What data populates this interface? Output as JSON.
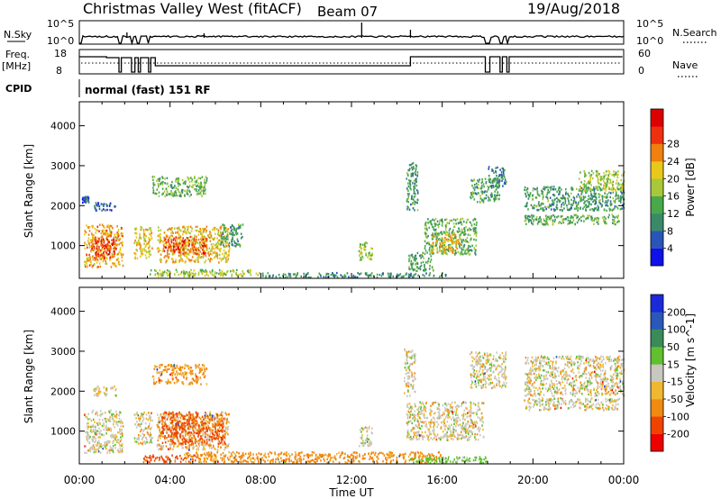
{
  "header": {
    "station": "Christmas Valley West (fitACF)",
    "beam": "Beam 07",
    "date": "19/Aug/2018"
  },
  "panels": {
    "nsky": {
      "label": "N.Sky",
      "tick_labels": [
        "10^5",
        "10^0"
      ],
      "right_label": "N.Search",
      "right_tick_labels": [
        "10^5",
        "10^0"
      ]
    },
    "freq": {
      "label_line1": "Freq.",
      "label_line2": "[MHz]",
      "tick_labels": [
        "18",
        "8"
      ],
      "right_label": "Nave",
      "right_tick_labels": [
        "60",
        "0"
      ]
    },
    "cpid": {
      "label": "CPID",
      "value": "normal (fast) 151 RF"
    }
  },
  "colors": {
    "power": [
      "#1010e8",
      "#2a55b8",
      "#3a8a6a",
      "#49a849",
      "#a8c83a",
      "#e8c81a",
      "#f08010",
      "#ee3010",
      "#dd0000"
    ],
    "velocity": [
      "#ee0000",
      "#ee4400",
      "#f08a10",
      "#f0b830",
      "#c8c8c0",
      "#60c030",
      "#3a8a5a",
      "#2a58b8",
      "#1a2ad8"
    ]
  },
  "chart_data": [
    {
      "type": "heatmap",
      "xlabel": "Time UT",
      "ylabel": "Slant Range [km]",
      "x_tick_labels": [
        "00:00",
        "04:00",
        "08:00",
        "12:00",
        "16:00",
        "20:00",
        "00:00"
      ],
      "xlim_hours": [
        0,
        24
      ],
      "ylim": [
        180,
        4600
      ],
      "y_ticks": [
        1000,
        2000,
        3000,
        4000
      ],
      "colorbar": {
        "label": "Power [dB]",
        "range": [
          0,
          36
        ],
        "ticks": [
          4,
          8,
          12,
          16,
          20,
          24,
          28
        ]
      },
      "echo_regions": [
        {
          "t0": 0.2,
          "t1": 1.9,
          "r0": 480,
          "r1": 1550,
          "value": 24
        },
        {
          "t0": 0.5,
          "t1": 1.6,
          "r0": 700,
          "r1": 1200,
          "value": 30
        },
        {
          "t0": 2.4,
          "t1": 3.2,
          "r0": 700,
          "r1": 1500,
          "value": 22
        },
        {
          "t0": 3.4,
          "t1": 6.6,
          "r0": 600,
          "r1": 1500,
          "value": 22
        },
        {
          "t0": 3.7,
          "t1": 5.6,
          "r0": 800,
          "r1": 1250,
          "value": 29
        },
        {
          "t0": 6.2,
          "t1": 7.2,
          "r0": 1000,
          "r1": 1550,
          "value": 12
        },
        {
          "t0": 3.2,
          "t1": 5.6,
          "r0": 2250,
          "r1": 2750,
          "value": 15
        },
        {
          "t0": 0.6,
          "t1": 1.6,
          "r0": 1900,
          "r1": 2100,
          "value": 7
        },
        {
          "t0": 0.1,
          "t1": 0.4,
          "r0": 2100,
          "r1": 2250,
          "value": 7
        },
        {
          "t0": 3.1,
          "t1": 8.0,
          "r0": 250,
          "r1": 420,
          "value": 18
        },
        {
          "t0": 8.0,
          "t1": 16.2,
          "r0": 220,
          "r1": 340,
          "value": 11
        },
        {
          "t0": 12.3,
          "t1": 12.9,
          "r0": 650,
          "r1": 1100,
          "value": 17
        },
        {
          "t0": 14.4,
          "t1": 14.9,
          "r0": 1900,
          "r1": 3100,
          "value": 12
        },
        {
          "t0": 14.5,
          "t1": 15.6,
          "r0": 380,
          "r1": 850,
          "value": 13
        },
        {
          "t0": 15.2,
          "t1": 17.5,
          "r0": 800,
          "r1": 1700,
          "value": 14
        },
        {
          "t0": 15.5,
          "t1": 16.8,
          "r0": 850,
          "r1": 1300,
          "value": 23
        },
        {
          "t0": 17.2,
          "t1": 18.5,
          "r0": 2100,
          "r1": 2700,
          "value": 12
        },
        {
          "t0": 18.0,
          "t1": 18.8,
          "r0": 2500,
          "r1": 3000,
          "value": 9
        },
        {
          "t0": 19.6,
          "t1": 24.0,
          "r0": 1900,
          "r1": 2500,
          "value": 12
        },
        {
          "t0": 22.0,
          "t1": 24.0,
          "r0": 2400,
          "r1": 2900,
          "value": 18
        },
        {
          "t0": 19.6,
          "t1": 23.8,
          "r0": 1550,
          "r1": 1800,
          "value": 14
        }
      ]
    },
    {
      "type": "heatmap",
      "xlabel": "Time UT",
      "ylabel": "Slant Range [km]",
      "x_tick_labels": [
        "00:00",
        "04:00",
        "08:00",
        "12:00",
        "16:00",
        "20:00",
        "00:00"
      ],
      "xlim_hours": [
        0,
        24
      ],
      "ylim": [
        180,
        4600
      ],
      "y_ticks": [
        1000,
        2000,
        3000,
        4000
      ],
      "colorbar": {
        "label": "Velocity [m s^-1]",
        "ticks": [
          -200,
          -100,
          -50,
          -15,
          15,
          50,
          100,
          200
        ],
        "tick_labels": [
          "-200",
          "-100",
          "-50",
          "-15",
          "15",
          "50",
          "100",
          "200"
        ]
      },
      "echo_regions": [
        {
          "t0": 0.2,
          "t1": 1.9,
          "r0": 480,
          "r1": 1550,
          "value": 0
        },
        {
          "t0": 2.4,
          "t1": 3.2,
          "r0": 700,
          "r1": 1500,
          "value": 0
        },
        {
          "t0": 3.4,
          "t1": 6.6,
          "r0": 550,
          "r1": 1500,
          "value": -10
        },
        {
          "t0": 3.6,
          "t1": 6.4,
          "r0": 700,
          "r1": 1500,
          "value": -60
        },
        {
          "t0": 3.2,
          "t1": 5.6,
          "r0": 2200,
          "r1": 2700,
          "value": -25
        },
        {
          "t0": 0.6,
          "t1": 1.6,
          "r0": 1900,
          "r1": 2150,
          "value": 0
        },
        {
          "t0": 2.8,
          "t1": 5.2,
          "r0": 250,
          "r1": 420,
          "value": -60
        },
        {
          "t0": 4.5,
          "t1": 16.0,
          "r0": 230,
          "r1": 500,
          "value": -30
        },
        {
          "t0": 14.5,
          "t1": 18.0,
          "r0": 220,
          "r1": 380,
          "value": 30
        },
        {
          "t0": 12.3,
          "t1": 12.9,
          "r0": 650,
          "r1": 1150,
          "value": 0
        },
        {
          "t0": 14.3,
          "t1": 14.8,
          "r0": 1900,
          "r1": 3100,
          "value": 0
        },
        {
          "t0": 14.4,
          "t1": 17.8,
          "r0": 800,
          "r1": 1750,
          "value": 0
        },
        {
          "t0": 17.2,
          "t1": 18.8,
          "r0": 2100,
          "r1": 3000,
          "value": 0
        },
        {
          "t0": 19.6,
          "t1": 24.0,
          "r0": 1900,
          "r1": 2900,
          "value": 0
        },
        {
          "t0": 19.6,
          "t1": 23.8,
          "r0": 1550,
          "r1": 1850,
          "value": 0
        }
      ]
    }
  ]
}
